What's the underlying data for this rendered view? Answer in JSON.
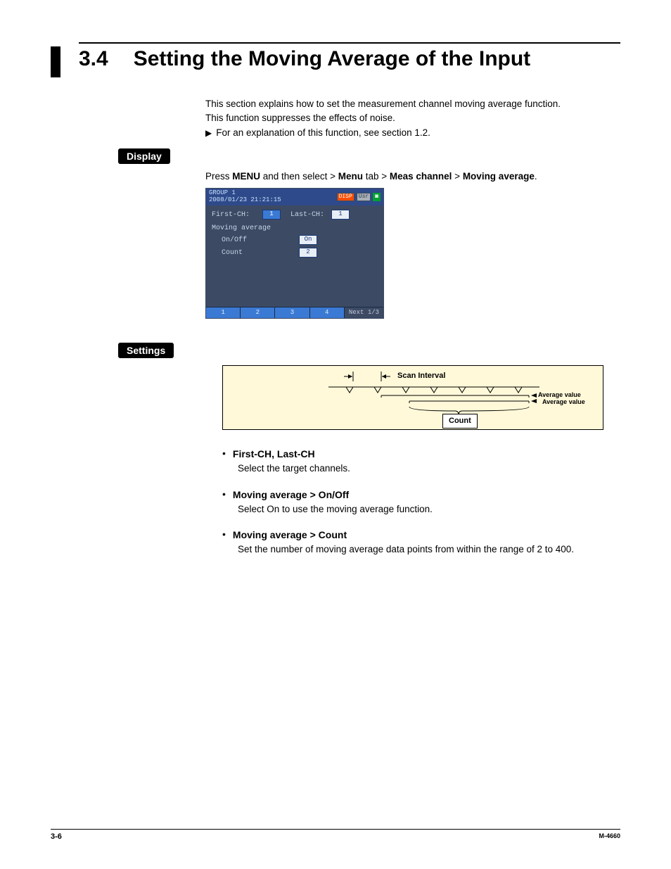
{
  "page": {
    "section_number": "3.4",
    "title": "Setting the Moving Average of the Input",
    "intro_line1": "This section explains how to set the measurement channel moving average function.",
    "intro_line2": "This function suppresses the effects of noise.",
    "xref": "For an explanation of this function, see section 1.2.",
    "footer_page": "3-6",
    "footer_code": "M-4660"
  },
  "labels": {
    "display": "Display",
    "settings": "Settings"
  },
  "breadcrumb": {
    "prefix": "Press ",
    "b1": "MENU",
    "mid1": " and then select > ",
    "b2": "Menu",
    "mid2": " tab > ",
    "b3": "Meas channel",
    "mid3": " > ",
    "b4": "Moving average",
    "suffix": "."
  },
  "device": {
    "top_left": "GROUP 1\n2008/01/23 21:21:15",
    "icons": {
      "a": "DISP",
      "b": "Usr",
      "c": "◙"
    },
    "first_ch_label": "First-CH:",
    "first_ch_val": "1",
    "last_ch_label": "Last-CH:",
    "last_ch_val": "1",
    "section": "Moving average",
    "onoff_label": "On/Off",
    "onoff_val": "On",
    "count_label": "Count",
    "count_val": "2",
    "btn1": "1",
    "btn2": "2",
    "btn3": "3",
    "btn4": "4",
    "next": "Next 1/3",
    "colors": {
      "header_bg": "#2e4a8a",
      "body_bg": "#3c4a63",
      "button_bg": "#3a7ad4",
      "field_bg": "#e8eef6",
      "icon_orange": "#ff4d00"
    }
  },
  "diagram": {
    "background": "#fff9d9",
    "scan_label": "Scan Interval",
    "avg_label1": "Average value",
    "avg_label2": "Average value",
    "count_label": "Count",
    "tick_count": 7,
    "tick_start_x": 180,
    "tick_spacing": 40
  },
  "bullets": [
    {
      "title": "First-CH, Last-CH",
      "body": "Select the target channels."
    },
    {
      "title": "Moving average > On/Off",
      "body": "Select On to use the moving average function."
    },
    {
      "title": "Moving average > Count",
      "body": "Set the number of moving average data points from within the range of 2 to 400."
    }
  ]
}
